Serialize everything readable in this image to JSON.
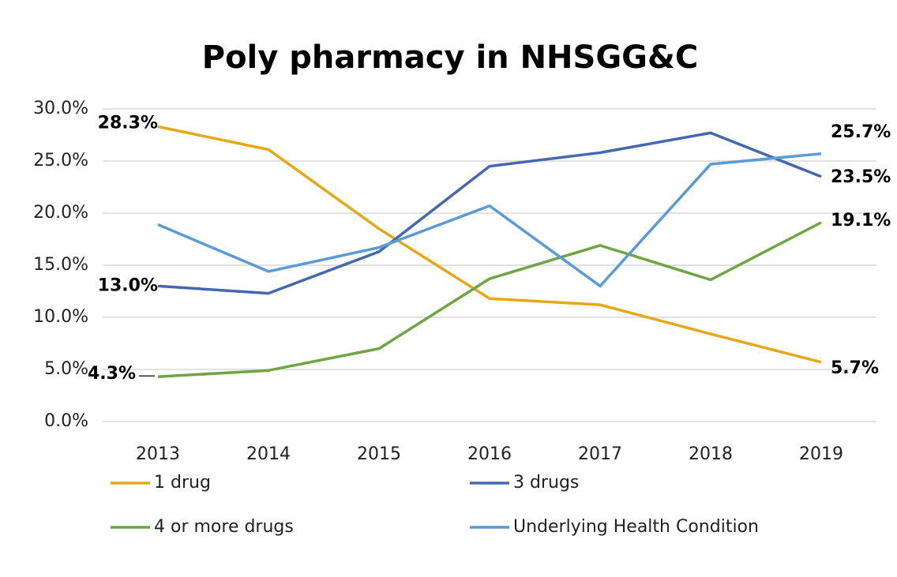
{
  "chart_data": {
    "type": "line",
    "title": "Poly pharmacy in NHSGG&C",
    "categories": [
      "2013",
      "2014",
      "2015",
      "2016",
      "2017",
      "2018",
      "2019"
    ],
    "series": [
      {
        "name": "1 drug",
        "color": "#e6a817",
        "values": [
          28.3,
          26.1,
          18.5,
          11.8,
          11.2,
          8.4,
          5.7
        ],
        "value_labels": [
          "28.3%",
          null,
          null,
          null,
          null,
          null,
          "5.7%"
        ]
      },
      {
        "name": "3 drugs",
        "color": "#4468b0",
        "values": [
          13.0,
          12.3,
          16.3,
          24.5,
          25.8,
          27.7,
          23.5
        ],
        "value_labels": [
          "13.0%",
          null,
          null,
          null,
          null,
          null,
          "23.5%"
        ]
      },
      {
        "name": "4 or more drugs",
        "color": "#6fa545",
        "values": [
          4.3,
          4.9,
          7.0,
          13.7,
          16.9,
          13.6,
          19.1
        ],
        "value_labels": [
          "4.3%",
          null,
          null,
          null,
          null,
          null,
          "19.1%"
        ]
      },
      {
        "name": "Underlying Health Condition",
        "color": "#5b9bd5",
        "values": [
          18.9,
          14.4,
          16.7,
          20.7,
          13.0,
          24.7,
          25.7
        ],
        "value_labels": [
          null,
          null,
          null,
          null,
          null,
          null,
          "25.7%"
        ]
      }
    ],
    "ylim": [
      0,
      30
    ],
    "yticks": [
      {
        "value": 0,
        "label": "0.0%"
      },
      {
        "value": 5,
        "label": "5.0%"
      },
      {
        "value": 10,
        "label": "10.0%"
      },
      {
        "value": 15,
        "label": "15.0%"
      },
      {
        "value": 20,
        "label": "20.0%"
      },
      {
        "value": 25,
        "label": "25.0%"
      },
      {
        "value": 30,
        "label": "30.0%"
      }
    ],
    "grid": true,
    "legend": "bottom"
  }
}
